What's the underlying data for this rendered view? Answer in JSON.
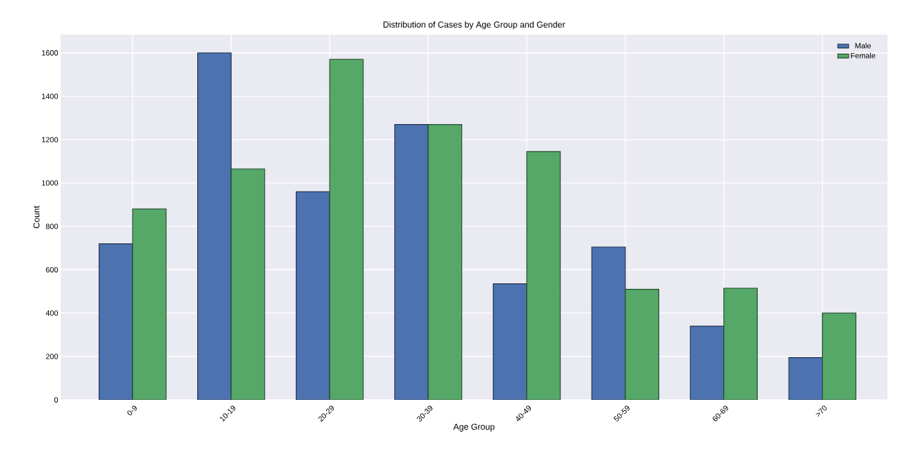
{
  "chart_data": {
    "type": "bar",
    "title": "Distribution of Cases by Age Group and Gender",
    "xlabel": "Age Group",
    "ylabel": "Count",
    "categories": [
      "0-9",
      "10-19",
      "20-29",
      "30-39",
      "40-49",
      "50-59",
      "60-69",
      ">70"
    ],
    "series": [
      {
        "name": "Male",
        "color": "#4c72b0",
        "values": [
          720,
          1600,
          960,
          1270,
          535,
          705,
          340,
          195
        ]
      },
      {
        "name": "Female",
        "color": "#55a868",
        "values": [
          880,
          1065,
          1570,
          1270,
          1145,
          510,
          515,
          400
        ]
      }
    ],
    "ylim": [
      0,
      1685
    ],
    "yticks": [
      0,
      200,
      400,
      600,
      800,
      1000,
      1200,
      1400,
      1600
    ],
    "grid": true,
    "legend": "top right"
  }
}
